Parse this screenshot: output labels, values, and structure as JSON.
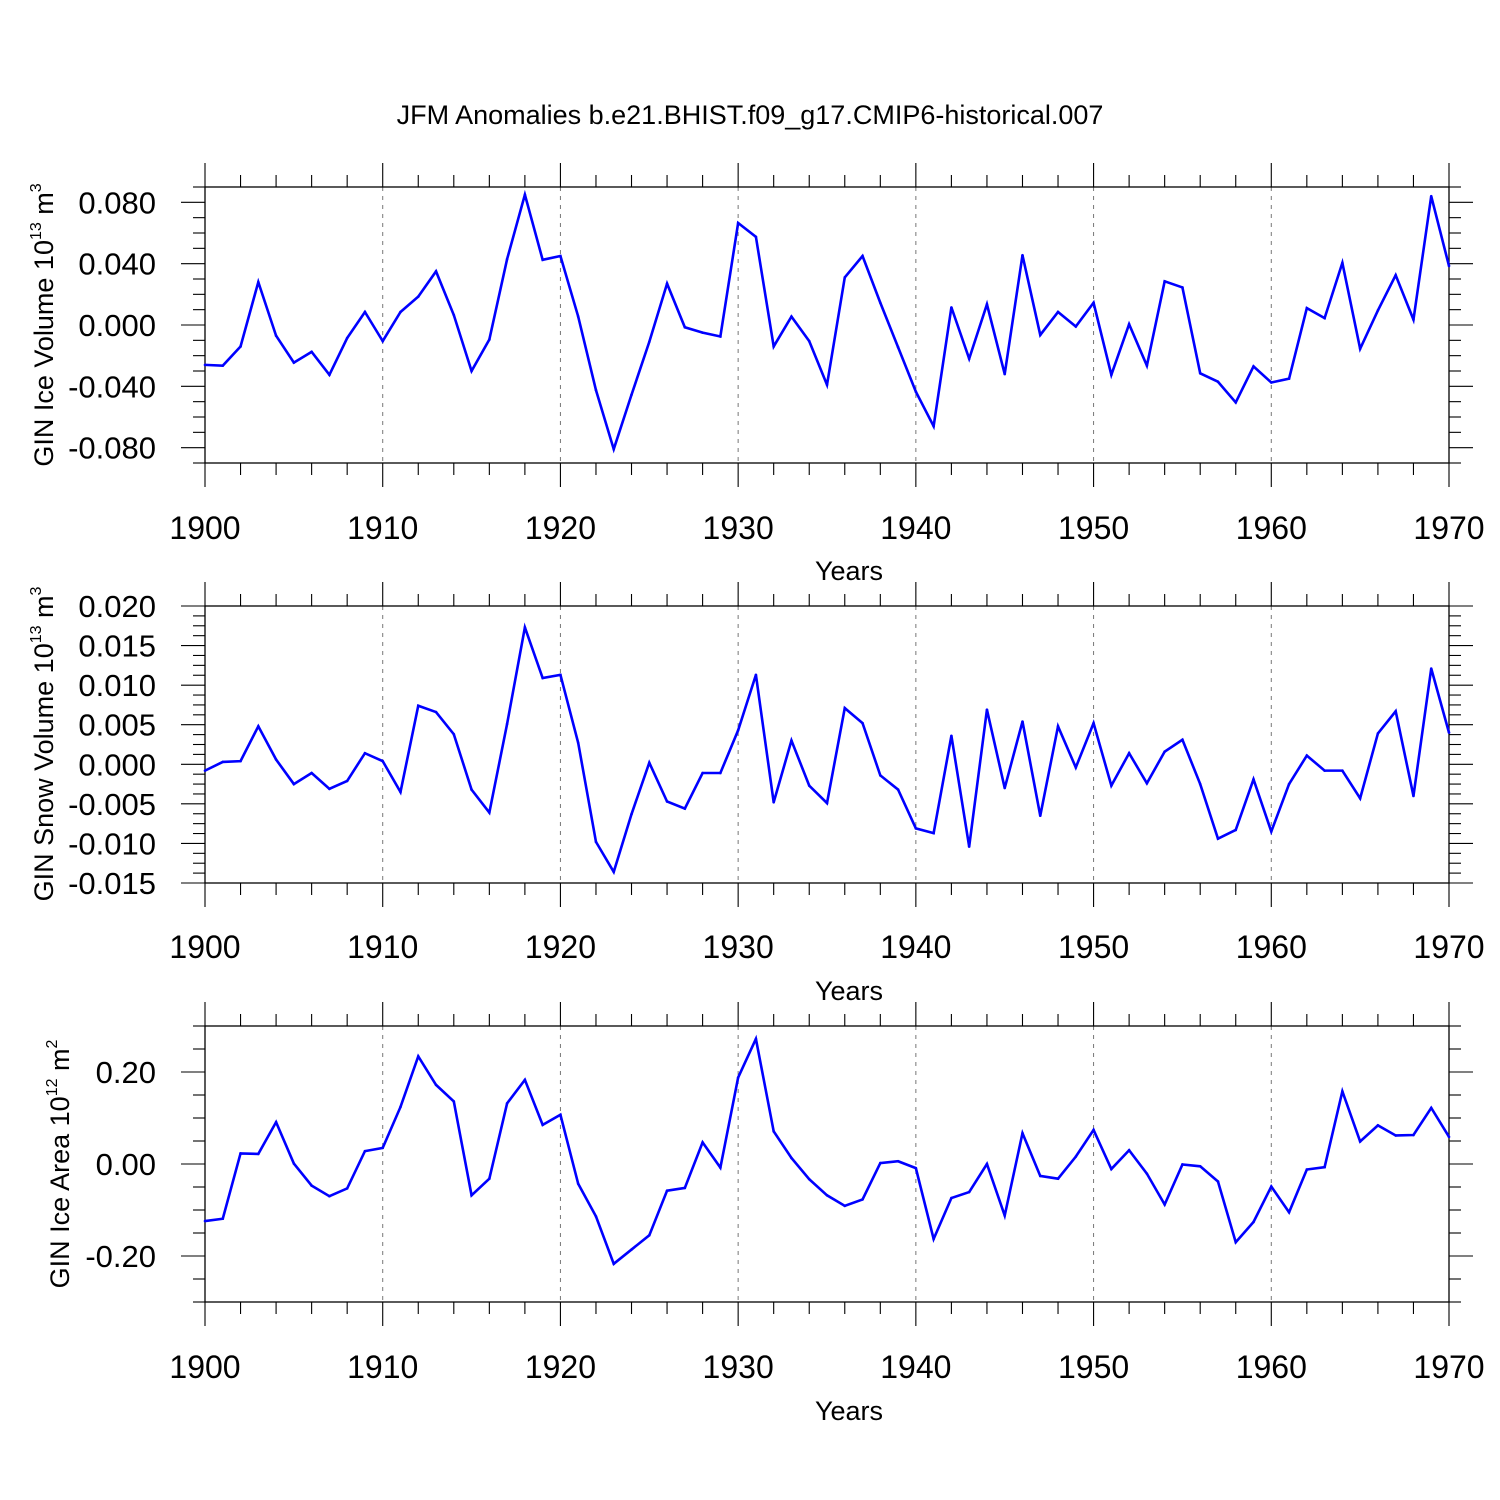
{
  "figure": {
    "title": "JFM Anomalies b.e21.BHIST.f09_g17.CMIP6-historical.007",
    "line_color": "#0000ff"
  },
  "chart_data": [
    {
      "type": "line",
      "title": "",
      "xlabel": "Years",
      "ylabel_text": "GIN Ice Volume 10",
      "ylabel_exponent": "13",
      "ylabel_unit": " m",
      "ylabel_unit_exponent": "3",
      "xlim": [
        1900,
        1970
      ],
      "ylim": [
        -0.09,
        0.09
      ],
      "xticks": [
        "1900",
        "1910",
        "1920",
        "1930",
        "1940",
        "1950",
        "1960",
        "1970"
      ],
      "yticks": [
        "0.080",
        "0.040",
        "0.000",
        "-0.040",
        "-0.080"
      ],
      "ytick_values": [
        0.08,
        0.04,
        0.0,
        -0.04,
        -0.08
      ],
      "grid": "x-dashed",
      "series": [
        {
          "name": "GIN Ice Volume",
          "x_start": 1900,
          "values": [
            -0.026,
            -0.0265,
            -0.014,
            0.028,
            -0.007,
            -0.0245,
            -0.0175,
            -0.0325,
            -0.0085,
            0.0085,
            -0.0105,
            0.0085,
            0.0185,
            0.035,
            0.0065,
            -0.03,
            -0.0095,
            0.043,
            0.085,
            0.0425,
            0.045,
            0.0055,
            -0.0425,
            -0.081,
            -0.0455,
            -0.011,
            0.027,
            -0.0015,
            -0.005,
            -0.0075,
            0.0665,
            0.0575,
            -0.014,
            0.0055,
            -0.0105,
            -0.039,
            0.031,
            0.045,
            0.0145,
            -0.0145,
            -0.0435,
            -0.066,
            0.0115,
            -0.022,
            0.0135,
            -0.032,
            0.0455,
            -0.0065,
            0.0085,
            -0.001,
            0.0145,
            -0.0325,
            0.0005,
            -0.0265,
            0.0285,
            0.0245,
            -0.0315,
            -0.037,
            -0.0505,
            -0.027,
            -0.0375,
            -0.035,
            0.011,
            0.0045,
            0.0405,
            -0.0155,
            0.0095,
            0.0325,
            0.0035,
            0.084,
            0.0385
          ]
        }
      ]
    },
    {
      "type": "line",
      "title": "",
      "xlabel": "Years",
      "ylabel_text": "GIN Snow Volume 10",
      "ylabel_exponent": "13",
      "ylabel_unit": " m",
      "ylabel_unit_exponent": "3",
      "xlim": [
        1900,
        1970
      ],
      "ylim": [
        -0.015,
        0.02
      ],
      "xticks": [
        "1900",
        "1910",
        "1920",
        "1930",
        "1940",
        "1950",
        "1960",
        "1970"
      ],
      "yticks": [
        "0.020",
        "0.015",
        "0.010",
        "0.005",
        "0.000",
        "-0.005",
        "-0.010",
        "-0.015"
      ],
      "ytick_values": [
        0.02,
        0.015,
        0.01,
        0.005,
        0.0,
        -0.005,
        -0.01,
        -0.015
      ],
      "grid": "x-dashed",
      "series": [
        {
          "name": "GIN Snow Volume",
          "x_start": 1900,
          "values": [
            -0.0008,
            0.0003,
            0.0004,
            0.0048,
            0.0006,
            -0.0025,
            -0.0011,
            -0.0031,
            -0.0021,
            0.0014,
            0.0004,
            -0.0035,
            0.0074,
            0.0066,
            0.0038,
            -0.0032,
            -0.0061,
            0.0051,
            0.0173,
            0.0109,
            0.0113,
            0.0027,
            -0.0098,
            -0.0136,
            -0.0063,
            0.0002,
            -0.0047,
            -0.0056,
            -0.0011,
            -0.0011,
            0.0043,
            0.0113,
            -0.0048,
            0.003,
            -0.0027,
            -0.0049,
            0.0071,
            0.0052,
            -0.0014,
            -0.0032,
            -0.0081,
            -0.0087,
            0.0036,
            -0.0104,
            0.0069,
            -0.003,
            0.0054,
            -0.0065,
            0.0048,
            -0.0004,
            0.0052,
            -0.0027,
            0.0014,
            -0.0024,
            0.0016,
            0.0031,
            -0.0025,
            -0.0094,
            -0.0083,
            -0.0019,
            -0.0085,
            -0.0025,
            0.0011,
            -0.0008,
            -0.0008,
            -0.0043,
            0.0039,
            0.0067,
            -0.004,
            0.0121,
            0.004
          ]
        }
      ]
    },
    {
      "type": "line",
      "title": "",
      "xlabel": "Years",
      "ylabel_text": "GIN Ice Area 10",
      "ylabel_exponent": "12",
      "ylabel_unit": " m",
      "ylabel_unit_exponent": "2",
      "xlim": [
        1900,
        1970
      ],
      "ylim": [
        -0.3,
        0.3
      ],
      "xticks": [
        "1900",
        "1910",
        "1920",
        "1930",
        "1940",
        "1950",
        "1960",
        "1970"
      ],
      "yticks": [
        "0.20",
        "0.00",
        "-0.20"
      ],
      "ytick_values": [
        0.2,
        0.0,
        -0.2
      ],
      "grid": "x-dashed",
      "series": [
        {
          "name": "GIN Ice Area",
          "x_start": 1900,
          "values": [
            -0.124,
            -0.119,
            0.023,
            0.022,
            0.091,
            0.001,
            -0.047,
            -0.07,
            -0.053,
            0.028,
            0.035,
            0.124,
            0.234,
            0.172,
            0.136,
            -0.068,
            -0.032,
            0.132,
            0.183,
            0.085,
            0.107,
            -0.043,
            -0.114,
            -0.217,
            -0.186,
            -0.155,
            -0.058,
            -0.052,
            0.047,
            -0.008,
            0.188,
            0.272,
            0.071,
            0.013,
            -0.033,
            -0.068,
            -0.091,
            -0.077,
            0.002,
            0.006,
            -0.009,
            -0.163,
            -0.074,
            -0.061,
            0.0,
            -0.112,
            0.067,
            -0.026,
            -0.032,
            0.016,
            0.074,
            -0.011,
            0.03,
            -0.021,
            -0.088,
            -0.001,
            -0.005,
            -0.038,
            -0.17,
            -0.126,
            -0.049,
            -0.105,
            -0.012,
            -0.007,
            0.158,
            0.049,
            0.084,
            0.062,
            0.063,
            0.122,
            0.059
          ]
        }
      ]
    }
  ]
}
